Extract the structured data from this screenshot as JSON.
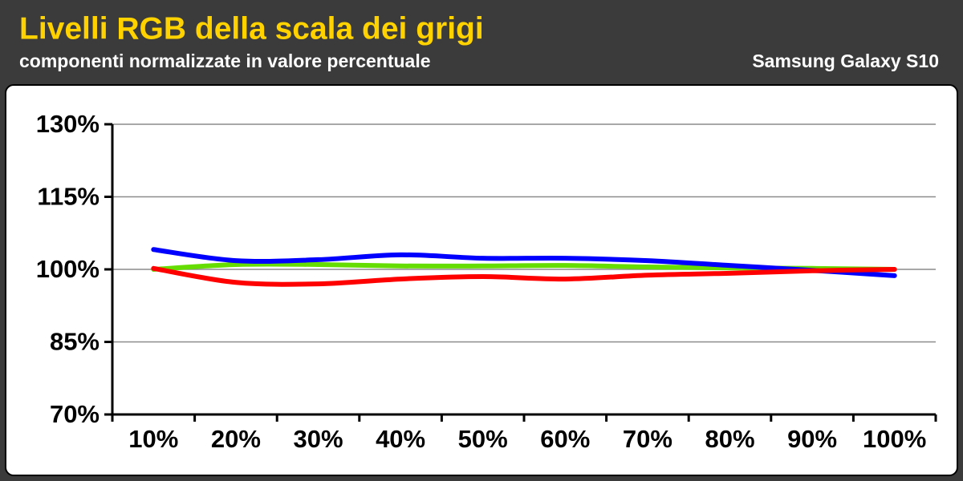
{
  "chart_data": {
    "type": "line",
    "title": "Livelli RGB della scala dei grigi",
    "subtitle": "componenti normalizzate in valore percentuale",
    "annotation": "Samsung Galaxy S10",
    "categories": [
      "10%",
      "20%",
      "30%",
      "40%",
      "50%",
      "60%",
      "70%",
      "80%",
      "90%",
      "100%"
    ],
    "series": [
      {
        "color": "#66dd00",
        "values": [
          100,
          101,
          101,
          100.7,
          100.7,
          100.8,
          100.5,
          100.3,
          100.2,
          100
        ]
      },
      {
        "color": "#0000ff",
        "values": [
          104.1,
          101.8,
          102,
          103,
          102.3,
          102.3,
          101.8,
          100.8,
          99.8,
          98.7
        ]
      },
      {
        "color": "#ff0000",
        "values": [
          100.2,
          97.3,
          97,
          98,
          98.5,
          98,
          98.8,
          99.2,
          99.7,
          100
        ]
      }
    ],
    "ylim": [
      70,
      130
    ],
    "yticks": [
      {
        "value": 70,
        "label": "70%"
      },
      {
        "value": 85,
        "label": "85%"
      },
      {
        "value": 100,
        "label": "100%"
      },
      {
        "value": 115,
        "label": "115%"
      },
      {
        "value": 130,
        "label": "130%"
      }
    ],
    "grid": true
  }
}
